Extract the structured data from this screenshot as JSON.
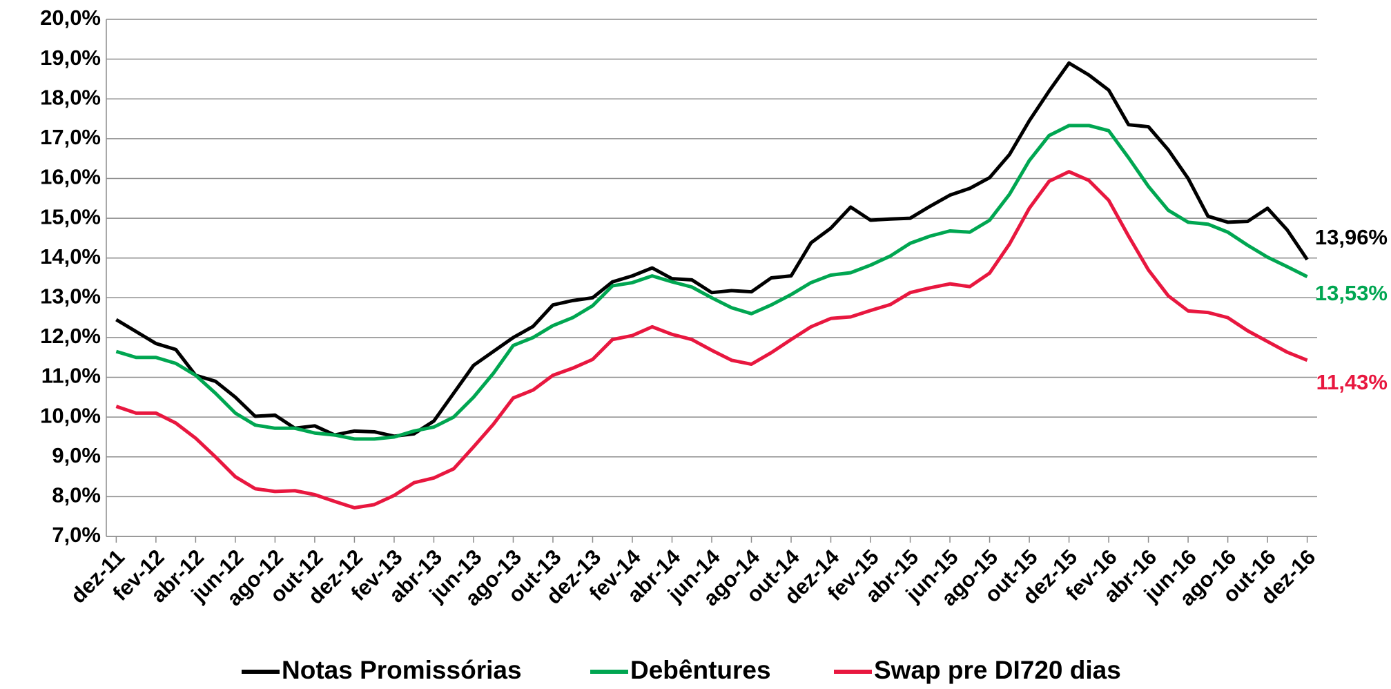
{
  "chart_data": {
    "type": "line",
    "categories": [
      "dez-11",
      null,
      "fev-12",
      null,
      "abr-12",
      null,
      "jun-12",
      null,
      "ago-12",
      null,
      "out-12",
      null,
      "dez-12",
      null,
      "fev-13",
      null,
      "abr-13",
      null,
      "jun-13",
      null,
      "ago-13",
      null,
      "out-13",
      null,
      "dez-13",
      null,
      "fev-14",
      null,
      "abr-14",
      null,
      "jun-14",
      null,
      "ago-14",
      null,
      "out-14",
      null,
      "dez-14",
      null,
      "fev-15",
      null,
      "abr-15",
      null,
      "jun-15",
      null,
      "ago-15",
      null,
      "out-15",
      null,
      "dez-15",
      null,
      "fev-16",
      null,
      "abr-16",
      null,
      "jun-16",
      null,
      "ago-16",
      null,
      "out-16",
      null,
      "dez-16"
    ],
    "series": [
      {
        "name": "Notas Promissórias",
        "color": "#000000",
        "values": [
          12.45,
          12.15,
          11.85,
          11.7,
          11.05,
          10.9,
          10.5,
          10.02,
          10.05,
          9.72,
          9.78,
          9.55,
          9.65,
          9.63,
          9.52,
          9.58,
          9.9,
          10.6,
          11.3,
          11.65,
          12.0,
          12.28,
          12.82,
          12.93,
          13.0,
          13.4,
          13.55,
          13.75,
          13.48,
          13.45,
          13.13,
          13.18,
          13.15,
          13.5,
          13.55,
          14.38,
          14.75,
          15.28,
          14.95,
          14.98,
          15.0,
          15.3,
          15.58,
          15.75,
          16.02,
          16.6,
          17.45,
          18.2,
          18.9,
          18.6,
          18.22,
          17.35,
          17.3,
          16.72,
          16.0,
          15.05,
          14.9,
          14.92,
          15.25,
          14.7,
          13.96
        ],
        "value_labels": [
          null,
          null,
          null,
          null,
          null,
          null,
          null,
          null,
          null,
          null,
          null,
          null,
          null,
          null,
          null,
          null,
          null,
          null,
          null,
          null,
          null,
          null,
          null,
          null,
          null,
          null,
          null,
          null,
          null,
          null,
          null,
          null,
          null,
          null,
          null,
          null,
          null,
          null,
          null,
          null,
          null,
          null,
          null,
          null,
          null,
          null,
          null,
          null,
          null,
          null,
          null,
          null,
          null,
          null,
          null,
          null,
          null,
          null,
          null,
          null,
          "13,96%"
        ]
      },
      {
        "name": "Debêntures",
        "color": "#00a651",
        "values": [
          11.65,
          11.5,
          11.5,
          11.35,
          11.05,
          10.6,
          10.1,
          9.8,
          9.72,
          9.72,
          9.6,
          9.55,
          9.45,
          9.45,
          9.5,
          9.65,
          9.75,
          10.0,
          10.5,
          11.1,
          11.8,
          12.0,
          12.3,
          12.5,
          12.8,
          13.3,
          13.38,
          13.55,
          13.4,
          13.27,
          13.0,
          12.75,
          12.6,
          12.82,
          13.08,
          13.38,
          13.57,
          13.63,
          13.82,
          14.05,
          14.37,
          14.55,
          14.68,
          14.65,
          14.95,
          15.6,
          16.45,
          17.08,
          17.33,
          17.33,
          17.2,
          16.52,
          15.8,
          15.2,
          14.9,
          14.85,
          14.65,
          14.32,
          14.02,
          13.78,
          13.53
        ],
        "value_labels": [
          null,
          null,
          null,
          null,
          null,
          null,
          null,
          null,
          null,
          null,
          null,
          null,
          null,
          null,
          null,
          null,
          null,
          null,
          null,
          null,
          null,
          null,
          null,
          null,
          null,
          null,
          null,
          null,
          null,
          null,
          null,
          null,
          null,
          null,
          null,
          null,
          null,
          null,
          null,
          null,
          null,
          null,
          null,
          null,
          null,
          null,
          null,
          null,
          null,
          null,
          null,
          null,
          null,
          null,
          null,
          null,
          null,
          null,
          null,
          null,
          "13,53%"
        ]
      },
      {
        "name": "Swap pre DI720 dias",
        "color": "#e8173f",
        "values": [
          10.27,
          10.1,
          10.1,
          9.85,
          9.47,
          9.0,
          8.5,
          8.2,
          8.13,
          8.15,
          8.05,
          7.88,
          7.72,
          7.8,
          8.03,
          8.35,
          8.47,
          8.7,
          9.25,
          9.82,
          10.48,
          10.68,
          11.05,
          11.23,
          11.45,
          11.95,
          12.05,
          12.27,
          12.08,
          11.95,
          11.68,
          11.43,
          11.33,
          11.62,
          11.95,
          12.27,
          12.48,
          12.52,
          12.68,
          12.83,
          13.13,
          13.25,
          13.35,
          13.28,
          13.62,
          14.35,
          15.25,
          15.93,
          16.17,
          15.95,
          15.45,
          14.55,
          13.7,
          13.05,
          12.67,
          12.63,
          12.5,
          12.17,
          11.9,
          11.63,
          11.43
        ],
        "value_labels": [
          null,
          null,
          null,
          null,
          null,
          null,
          null,
          null,
          null,
          null,
          null,
          null,
          null,
          null,
          null,
          null,
          null,
          null,
          null,
          null,
          null,
          null,
          null,
          null,
          null,
          null,
          null,
          null,
          null,
          null,
          null,
          null,
          null,
          null,
          null,
          null,
          null,
          null,
          null,
          null,
          null,
          null,
          null,
          null,
          null,
          null,
          null,
          null,
          null,
          null,
          null,
          null,
          null,
          null,
          null,
          null,
          null,
          null,
          null,
          null,
          "11,43%"
        ]
      }
    ],
    "ylim": [
      7,
      20
    ],
    "yticks": [
      {
        "value": 7,
        "label": "7,0%"
      },
      {
        "value": 8,
        "label": "8,0%"
      },
      {
        "value": 9,
        "label": "9,0%"
      },
      {
        "value": 10,
        "label": "10,0%"
      },
      {
        "value": 11,
        "label": "11,0%"
      },
      {
        "value": 12,
        "label": "12,0%"
      },
      {
        "value": 13,
        "label": "13,0%"
      },
      {
        "value": 14,
        "label": "14,0%"
      },
      {
        "value": 15,
        "label": "15,0%"
      },
      {
        "value": 16,
        "label": "16,0%"
      },
      {
        "value": 17,
        "label": "17,0%"
      },
      {
        "value": 18,
        "label": "18,0%"
      },
      {
        "value": 19,
        "label": "19,0%"
      },
      {
        "value": 20,
        "label": "20,0%"
      }
    ],
    "grid": true,
    "legend": "bottom"
  }
}
